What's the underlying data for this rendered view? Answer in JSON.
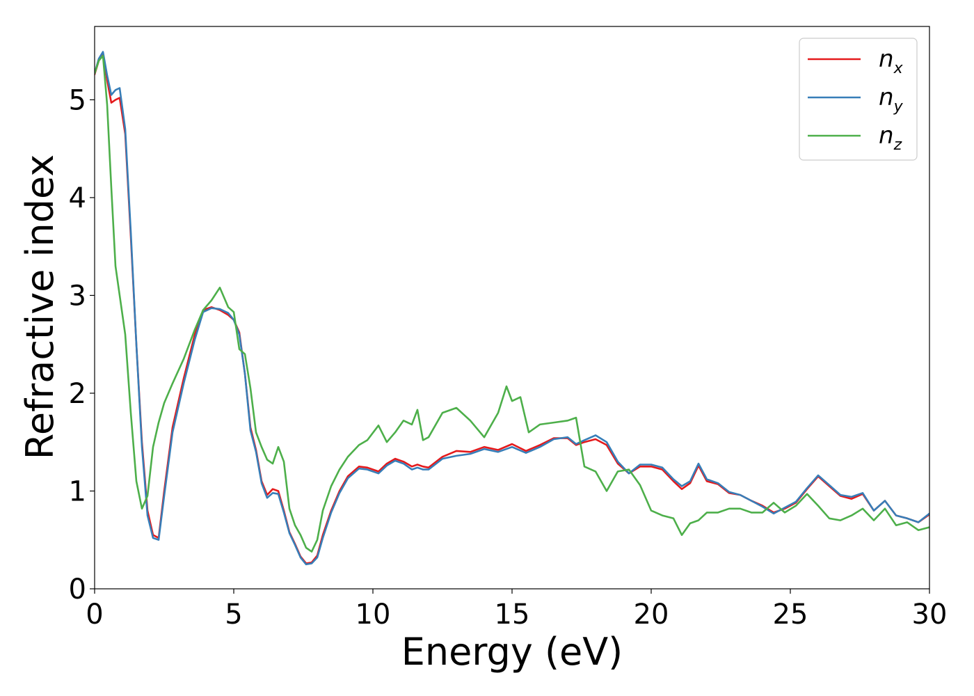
{
  "chart_data": {
    "type": "line",
    "title": "",
    "xlabel": "Energy (eV)",
    "ylabel": "Refractive index",
    "xlim": [
      0,
      30
    ],
    "ylim": [
      0,
      5.75
    ],
    "xticks": [
      0,
      5,
      10,
      15,
      20,
      25,
      30
    ],
    "yticks": [
      0,
      1,
      2,
      3,
      4,
      5
    ],
    "grid": false,
    "legend_position": "top-right",
    "series": [
      {
        "name": "n_x",
        "label_base": "n",
        "label_sub": "x",
        "color": "#e41a1c",
        "x": [
          0,
          0.15,
          0.3,
          0.45,
          0.6,
          0.75,
          0.9,
          1.1,
          1.3,
          1.5,
          1.7,
          1.9,
          2.1,
          2.3,
          2.5,
          2.8,
          3.2,
          3.6,
          3.9,
          4.2,
          4.5,
          4.8,
          5.0,
          5.2,
          5.4,
          5.6,
          5.8,
          6.0,
          6.2,
          6.4,
          6.6,
          6.8,
          7.0,
          7.2,
          7.4,
          7.6,
          7.8,
          8.0,
          8.2,
          8.5,
          8.8,
          9.1,
          9.5,
          9.8,
          10.2,
          10.5,
          10.8,
          11.1,
          11.4,
          11.6,
          11.8,
          12.0,
          12.5,
          13.0,
          13.5,
          14.0,
          14.5,
          15.0,
          15.5,
          16.0,
          16.5,
          17.0,
          17.3,
          17.6,
          18.0,
          18.4,
          18.8,
          19.2,
          19.6,
          20.0,
          20.4,
          20.8,
          21.1,
          21.4,
          21.7,
          22.0,
          22.4,
          22.8,
          23.2,
          23.6,
          24.0,
          24.4,
          24.8,
          25.2,
          25.6,
          26.0,
          26.4,
          26.8,
          27.2,
          27.6,
          28.0,
          28.4,
          28.8,
          29.2,
          29.6,
          30.0
        ],
        "y": [
          5.26,
          5.4,
          5.48,
          5.2,
          4.97,
          5.0,
          5.02,
          4.65,
          3.6,
          2.5,
          1.5,
          0.8,
          0.55,
          0.52,
          1.0,
          1.65,
          2.15,
          2.6,
          2.85,
          2.88,
          2.85,
          2.8,
          2.75,
          2.62,
          2.2,
          1.65,
          1.42,
          1.1,
          0.96,
          1.02,
          1.0,
          0.8,
          0.58,
          0.46,
          0.33,
          0.26,
          0.27,
          0.34,
          0.55,
          0.8,
          1.0,
          1.15,
          1.25,
          1.24,
          1.2,
          1.28,
          1.33,
          1.3,
          1.25,
          1.27,
          1.25,
          1.24,
          1.35,
          1.41,
          1.4,
          1.45,
          1.42,
          1.48,
          1.41,
          1.47,
          1.54,
          1.54,
          1.47,
          1.5,
          1.53,
          1.47,
          1.28,
          1.18,
          1.25,
          1.25,
          1.22,
          1.1,
          1.02,
          1.08,
          1.26,
          1.1,
          1.07,
          0.98,
          0.96,
          0.9,
          0.85,
          0.78,
          0.82,
          0.88,
          1.02,
          1.15,
          1.05,
          0.95,
          0.92,
          0.97,
          0.8,
          0.9,
          0.75,
          0.72,
          0.68,
          0.76
        ]
      },
      {
        "name": "n_y",
        "label_base": "n",
        "label_sub": "y",
        "color": "#377eb8",
        "x": [
          0,
          0.15,
          0.3,
          0.45,
          0.6,
          0.75,
          0.9,
          1.1,
          1.3,
          1.5,
          1.7,
          1.9,
          2.1,
          2.3,
          2.5,
          2.8,
          3.2,
          3.6,
          3.9,
          4.2,
          4.5,
          4.8,
          5.0,
          5.2,
          5.4,
          5.6,
          5.8,
          6.0,
          6.2,
          6.4,
          6.6,
          6.8,
          7.0,
          7.2,
          7.4,
          7.6,
          7.8,
          8.0,
          8.2,
          8.5,
          8.8,
          9.1,
          9.5,
          9.8,
          10.2,
          10.5,
          10.8,
          11.1,
          11.4,
          11.6,
          11.8,
          12.0,
          12.5,
          13.0,
          13.5,
          14.0,
          14.5,
          15.0,
          15.5,
          16.0,
          16.5,
          17.0,
          17.3,
          17.6,
          18.0,
          18.4,
          18.8,
          19.2,
          19.6,
          20.0,
          20.4,
          20.8,
          21.1,
          21.4,
          21.7,
          22.0,
          22.4,
          22.8,
          23.2,
          23.6,
          24.0,
          24.4,
          24.8,
          25.2,
          25.6,
          26.0,
          26.4,
          26.8,
          27.2,
          27.6,
          28.0,
          28.4,
          28.8,
          29.2,
          29.6,
          30.0
        ],
        "y": [
          5.27,
          5.42,
          5.49,
          5.25,
          5.05,
          5.1,
          5.12,
          4.7,
          3.65,
          2.5,
          1.45,
          0.75,
          0.52,
          0.5,
          0.95,
          1.6,
          2.1,
          2.55,
          2.83,
          2.87,
          2.86,
          2.82,
          2.75,
          2.6,
          2.2,
          1.62,
          1.4,
          1.08,
          0.93,
          0.98,
          0.97,
          0.78,
          0.57,
          0.45,
          0.32,
          0.25,
          0.26,
          0.32,
          0.52,
          0.78,
          0.98,
          1.13,
          1.23,
          1.22,
          1.18,
          1.26,
          1.31,
          1.28,
          1.22,
          1.24,
          1.22,
          1.22,
          1.33,
          1.36,
          1.38,
          1.43,
          1.4,
          1.45,
          1.39,
          1.45,
          1.53,
          1.55,
          1.48,
          1.52,
          1.57,
          1.5,
          1.3,
          1.18,
          1.27,
          1.27,
          1.24,
          1.12,
          1.05,
          1.1,
          1.28,
          1.12,
          1.08,
          0.99,
          0.96,
          0.9,
          0.84,
          0.77,
          0.83,
          0.89,
          1.03,
          1.16,
          1.06,
          0.96,
          0.94,
          0.98,
          0.8,
          0.9,
          0.75,
          0.72,
          0.68,
          0.77
        ]
      },
      {
        "name": "n_z",
        "label_base": "n",
        "label_sub": "z",
        "color": "#4daf4a",
        "x": [
          0,
          0.15,
          0.3,
          0.45,
          0.6,
          0.75,
          0.9,
          1.1,
          1.3,
          1.5,
          1.7,
          1.9,
          2.1,
          2.3,
          2.5,
          2.8,
          3.2,
          3.6,
          3.9,
          4.2,
          4.5,
          4.8,
          5.0,
          5.2,
          5.4,
          5.6,
          5.8,
          6.0,
          6.2,
          6.4,
          6.6,
          6.8,
          7.0,
          7.2,
          7.4,
          7.6,
          7.8,
          8.0,
          8.2,
          8.5,
          8.8,
          9.1,
          9.5,
          9.8,
          10.2,
          10.5,
          10.8,
          11.1,
          11.4,
          11.6,
          11.8,
          12.0,
          12.5,
          13.0,
          13.5,
          14.0,
          14.5,
          14.8,
          15.0,
          15.3,
          15.6,
          16.0,
          16.5,
          17.0,
          17.3,
          17.6,
          18.0,
          18.4,
          18.8,
          19.2,
          19.6,
          20.0,
          20.4,
          20.8,
          21.1,
          21.4,
          21.7,
          22.0,
          22.4,
          22.8,
          23.2,
          23.6,
          24.0,
          24.4,
          24.8,
          25.2,
          25.6,
          26.0,
          26.4,
          26.8,
          27.2,
          27.6,
          28.0,
          28.4,
          28.8,
          29.2,
          29.6,
          30.0
        ],
        "y": [
          5.27,
          5.4,
          5.45,
          4.95,
          4.1,
          3.3,
          3.0,
          2.6,
          1.8,
          1.1,
          0.82,
          0.95,
          1.45,
          1.7,
          1.9,
          2.1,
          2.35,
          2.65,
          2.85,
          2.95,
          3.08,
          2.88,
          2.83,
          2.45,
          2.4,
          2.05,
          1.6,
          1.45,
          1.32,
          1.28,
          1.45,
          1.3,
          0.82,
          0.65,
          0.55,
          0.42,
          0.38,
          0.5,
          0.8,
          1.05,
          1.22,
          1.35,
          1.47,
          1.52,
          1.67,
          1.5,
          1.6,
          1.72,
          1.68,
          1.83,
          1.52,
          1.55,
          1.8,
          1.85,
          1.72,
          1.55,
          1.8,
          2.07,
          1.92,
          1.96,
          1.6,
          1.68,
          1.7,
          1.72,
          1.75,
          1.25,
          1.2,
          1.0,
          1.2,
          1.22,
          1.06,
          0.8,
          0.75,
          0.72,
          0.55,
          0.67,
          0.7,
          0.78,
          0.78,
          0.82,
          0.82,
          0.78,
          0.78,
          0.88,
          0.78,
          0.85,
          0.97,
          0.85,
          0.72,
          0.7,
          0.75,
          0.82,
          0.7,
          0.82,
          0.65,
          0.68,
          0.6,
          0.63
        ]
      }
    ]
  }
}
